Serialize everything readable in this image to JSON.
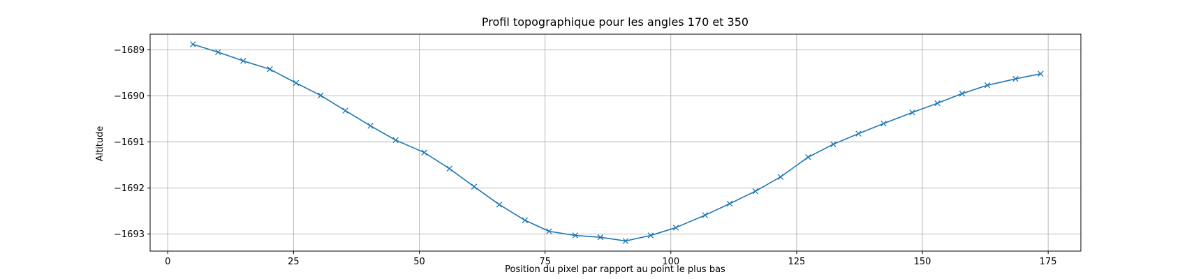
{
  "chart_data": {
    "type": "line",
    "title": "Profil topographique pour les angles 170 et 350",
    "xlabel": "Position du pixel par rapport au point le plus bas",
    "ylabel": "Altitude",
    "xlim": [
      -3.5,
      181.5
    ],
    "ylim": [
      -1693.37,
      -1688.66
    ],
    "xticks": [
      0,
      25,
      50,
      75,
      100,
      125,
      150,
      175
    ],
    "xtick_labels": [
      "0",
      "25",
      "50",
      "75",
      "100",
      "125",
      "150",
      "175"
    ],
    "yticks": [
      -1689,
      -1690,
      -1691,
      -1692,
      -1693
    ],
    "ytick_labels": [
      "−1689",
      "−1690",
      "−1691",
      "−1692",
      "−1693"
    ],
    "grid": true,
    "marker": "x",
    "color": "#1f77b4",
    "series": [
      {
        "x": [
          5,
          10,
          15,
          20.3,
          25.5,
          30.4,
          35.3,
          40.3,
          45.3,
          51,
          56,
          60.9,
          65.9,
          71,
          75.8,
          81,
          86,
          91,
          96,
          101,
          106.8,
          111.7,
          116.8,
          121.8,
          127.3,
          132.3,
          137.3,
          142.3,
          148,
          153,
          157.9,
          162.9,
          168.5,
          173.5
        ],
        "y": [
          -1688.88,
          -1689.05,
          -1689.24,
          -1689.42,
          -1689.72,
          -1689.99,
          -1690.32,
          -1690.65,
          -1690.96,
          -1691.23,
          -1691.58,
          -1691.97,
          -1692.36,
          -1692.7,
          -1692.94,
          -1693.03,
          -1693.07,
          -1693.15,
          -1693.03,
          -1692.86,
          -1692.59,
          -1692.34,
          -1692.07,
          -1691.76,
          -1691.33,
          -1691.05,
          -1690.82,
          -1690.6,
          -1690.36,
          -1690.16,
          -1689.95,
          -1689.77,
          -1689.63,
          -1689.52
        ]
      }
    ]
  }
}
